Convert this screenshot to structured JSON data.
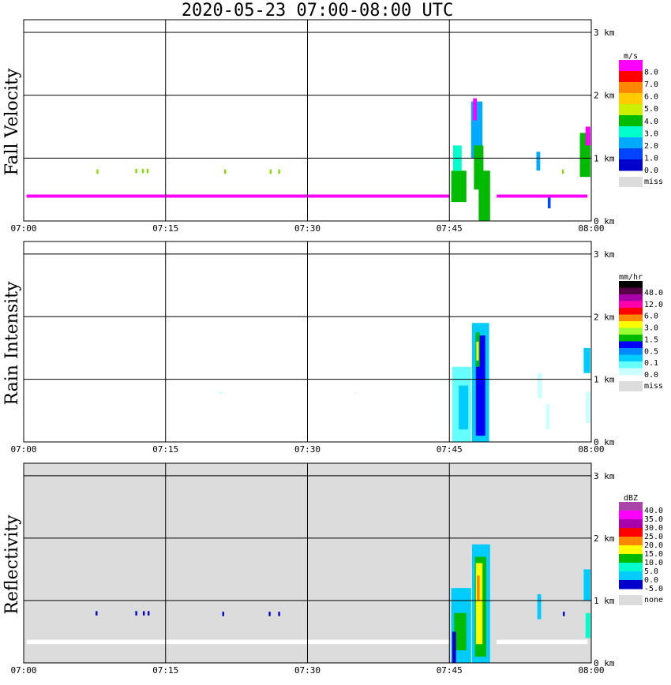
{
  "title": "2020-05-23   07:00-08:00 UTC",
  "x_ticks": [
    "07:00",
    "07:15",
    "07:30",
    "07:45",
    "08:00"
  ],
  "km_ticks": [
    "0 km",
    "1 km",
    "2 km",
    "3 km"
  ],
  "colors": {
    "missing": "#dcdcdc",
    "grid": "#000000"
  },
  "chart_data": [
    {
      "type": "heatmap",
      "ylabel": "Fall Velocity",
      "xlim": [
        "07:00",
        "08:00"
      ],
      "ylim_km": [
        0,
        3.2
      ],
      "legend": {
        "unit": "m/s",
        "labels": [
          "8.0",
          "7.0",
          "6.0",
          "5.0",
          "4.0",
          "3.0",
          "2.0",
          "1.0",
          "0.0"
        ],
        "colors": [
          "#ff00ff",
          "#ff0000",
          "#ff8800",
          "#ffcc00",
          "#ccee00",
          "#00bb00",
          "#00ffcc",
          "#00aaff",
          "#0044ff",
          "#0000cc"
        ],
        "missing_label": "miss"
      },
      "cells": [
        {
          "t0": 47.3,
          "t1": 48.5,
          "z0": 1.0,
          "z1": 1.9,
          "c": "#00aaff"
        },
        {
          "t0": 47.6,
          "t1": 48.6,
          "z0": 0.5,
          "z1": 1.2,
          "c": "#00bb00"
        },
        {
          "t0": 48.1,
          "t1": 49.3,
          "z0": 0.0,
          "z1": 0.8,
          "c": "#00bb00"
        },
        {
          "t0": 45.2,
          "t1": 46.8,
          "z0": 0.3,
          "z1": 0.8,
          "c": "#00bb00"
        },
        {
          "t0": 45.4,
          "t1": 46.3,
          "z0": 0.8,
          "z1": 1.2,
          "c": "#00ffcc"
        },
        {
          "t0": 47.5,
          "t1": 47.9,
          "z0": 1.6,
          "z1": 1.95,
          "c": "#ff00ff"
        },
        {
          "t0": 58.8,
          "t1": 59.9,
          "z0": 0.7,
          "z1": 1.4,
          "c": "#00bb00"
        },
        {
          "t0": 59.4,
          "t1": 59.9,
          "z0": 1.2,
          "z1": 1.5,
          "c": "#ff00ff"
        },
        {
          "t0": 54.2,
          "t1": 54.6,
          "z0": 0.8,
          "z1": 1.1,
          "c": "#00aaff"
        },
        {
          "t0": 55.4,
          "t1": 55.7,
          "z0": 0.2,
          "z1": 0.4,
          "c": "#0044ff"
        },
        {
          "t0": 7.7,
          "t1": 7.9,
          "z0": 0.75,
          "z1": 0.82,
          "c": "#88dd00"
        },
        {
          "t0": 11.8,
          "t1": 12.0,
          "z0": 0.76,
          "z1": 0.83,
          "c": "#88dd00"
        },
        {
          "t0": 12.5,
          "t1": 12.7,
          "z0": 0.76,
          "z1": 0.83,
          "c": "#88dd00"
        },
        {
          "t0": 13.0,
          "t1": 13.2,
          "z0": 0.76,
          "z1": 0.83,
          "c": "#88dd00"
        },
        {
          "t0": 21.2,
          "t1": 21.4,
          "z0": 0.75,
          "z1": 0.82,
          "c": "#88dd00"
        },
        {
          "t0": 26.0,
          "t1": 26.2,
          "z0": 0.75,
          "z1": 0.82,
          "c": "#88dd00"
        },
        {
          "t0": 26.9,
          "t1": 27.1,
          "z0": 0.75,
          "z1": 0.82,
          "c": "#88dd00"
        },
        {
          "t0": 56.9,
          "t1": 57.1,
          "z0": 0.75,
          "z1": 0.82,
          "c": "#88dd00"
        },
        {
          "t0": 0.3,
          "t1": 45.0,
          "z0": 0.37,
          "z1": 0.42,
          "c": "#ff00ff"
        },
        {
          "t0": 50.0,
          "t1": 59.6,
          "z0": 0.37,
          "z1": 0.42,
          "c": "#ff00ff"
        }
      ]
    },
    {
      "type": "heatmap",
      "ylabel": "Rain Intensity",
      "xlim": [
        "07:00",
        "08:00"
      ],
      "ylim_km": [
        0,
        3.2
      ],
      "legend": {
        "unit": "mm/hr",
        "labels": [
          "48.0",
          "12.0",
          "6.0",
          "3.0",
          "1.5",
          "0.5",
          "0.1",
          "0.0"
        ],
        "colors": [
          "#000000",
          "#550044",
          "#aa00aa",
          "#ff00aa",
          "#ff0000",
          "#ff8800",
          "#ffff00",
          "#99ff33",
          "#00bb00",
          "#0000ff",
          "#0088ff",
          "#00ccff",
          "#66ffff",
          "#ccffff"
        ],
        "missing_label": "miss"
      },
      "cells": [
        {
          "t0": 45.3,
          "t1": 47.3,
          "z0": 0.0,
          "z1": 1.2,
          "c": "#66ffff"
        },
        {
          "t0": 46.0,
          "t1": 47.0,
          "z0": 0.2,
          "z1": 0.9,
          "c": "#00ccff"
        },
        {
          "t0": 47.4,
          "t1": 49.2,
          "z0": 0.0,
          "z1": 1.9,
          "c": "#00ccff"
        },
        {
          "t0": 47.8,
          "t1": 48.8,
          "z0": 0.1,
          "z1": 1.7,
          "c": "#0000ff"
        },
        {
          "t0": 47.8,
          "t1": 48.2,
          "z0": 1.2,
          "z1": 1.75,
          "c": "#00bb00"
        },
        {
          "t0": 47.85,
          "t1": 48.1,
          "z0": 1.3,
          "z1": 1.6,
          "c": "#ffff00"
        },
        {
          "t0": 54.3,
          "t1": 54.8,
          "z0": 0.7,
          "z1": 1.1,
          "c": "#ccffff"
        },
        {
          "t0": 55.2,
          "t1": 55.6,
          "z0": 0.2,
          "z1": 0.6,
          "c": "#ccffff"
        },
        {
          "t0": 59.2,
          "t1": 59.9,
          "z0": 1.1,
          "z1": 1.5,
          "c": "#00ccff"
        },
        {
          "t0": 59.4,
          "t1": 59.9,
          "z0": 0.3,
          "z1": 0.8,
          "c": "#ccffff"
        },
        {
          "t0": 20.6,
          "t1": 21.0,
          "z0": 0.77,
          "z1": 0.8,
          "c": "#ccffff"
        },
        {
          "t0": 35.0,
          "t1": 35.2,
          "z0": 0.77,
          "z1": 0.8,
          "c": "#ccffff"
        }
      ]
    },
    {
      "type": "heatmap",
      "ylabel": "Reflectivity",
      "xlim": [
        "07:00",
        "08:00"
      ],
      "ylim_km": [
        0,
        3.2
      ],
      "legend": {
        "unit": "dBZ",
        "labels": [
          "40.0",
          "35.0",
          "30.0",
          "25.0",
          "20.0",
          "15.0",
          "10.0",
          "5.0",
          "0.0",
          "-5.0"
        ],
        "colors": [
          "#aa44aa",
          "#ff00ff",
          "#aa00aa",
          "#ff0000",
          "#ff8800",
          "#ffff00",
          "#00bb00",
          "#00ffcc",
          "#00ccff",
          "#0000cc"
        ],
        "missing_label": "none"
      },
      "cells": [
        {
          "t0": 45.2,
          "t1": 47.3,
          "z0": 0.0,
          "z1": 1.2,
          "c": "#00ccff"
        },
        {
          "t0": 45.5,
          "t1": 46.8,
          "z0": 0.2,
          "z1": 0.8,
          "c": "#00bb00"
        },
        {
          "t0": 47.4,
          "t1": 49.3,
          "z0": 0.0,
          "z1": 1.9,
          "c": "#00ccff"
        },
        {
          "t0": 47.7,
          "t1": 48.9,
          "z0": 0.1,
          "z1": 1.7,
          "c": "#00bb00"
        },
        {
          "t0": 47.8,
          "t1": 48.5,
          "z0": 0.3,
          "z1": 1.6,
          "c": "#ffff00"
        },
        {
          "t0": 47.9,
          "t1": 48.2,
          "z0": 1.0,
          "z1": 1.4,
          "c": "#ff8800"
        },
        {
          "t0": 45.3,
          "t1": 45.7,
          "z0": 0.0,
          "z1": 0.5,
          "c": "#0000cc"
        },
        {
          "t0": 54.3,
          "t1": 54.7,
          "z0": 0.7,
          "z1": 1.1,
          "c": "#00ccff"
        },
        {
          "t0": 59.2,
          "t1": 59.9,
          "z0": 1.0,
          "z1": 1.5,
          "c": "#00ccff"
        },
        {
          "t0": 59.4,
          "t1": 59.9,
          "z0": 0.4,
          "z1": 0.8,
          "c": "#00ffcc"
        },
        {
          "t0": 7.6,
          "t1": 7.8,
          "z0": 0.76,
          "z1": 0.83,
          "c": "#0000cc"
        },
        {
          "t0": 11.8,
          "t1": 12.0,
          "z0": 0.76,
          "z1": 0.83,
          "c": "#0000cc"
        },
        {
          "t0": 12.6,
          "t1": 12.8,
          "z0": 0.76,
          "z1": 0.83,
          "c": "#0000cc"
        },
        {
          "t0": 13.1,
          "t1": 13.3,
          "z0": 0.76,
          "z1": 0.83,
          "c": "#0000cc"
        },
        {
          "t0": 21.0,
          "t1": 21.2,
          "z0": 0.75,
          "z1": 0.82,
          "c": "#0000cc"
        },
        {
          "t0": 25.9,
          "t1": 26.1,
          "z0": 0.75,
          "z1": 0.82,
          "c": "#0000cc"
        },
        {
          "t0": 26.9,
          "t1": 27.1,
          "z0": 0.75,
          "z1": 0.82,
          "c": "#0000cc"
        },
        {
          "t0": 57.0,
          "t1": 57.2,
          "z0": 0.75,
          "z1": 0.82,
          "c": "#0000cc"
        },
        {
          "t0": 0.3,
          "t1": 45.0,
          "z0": 0.3,
          "z1": 0.37,
          "c": "#ffffff"
        },
        {
          "t0": 50.0,
          "t1": 59.6,
          "z0": 0.3,
          "z1": 0.37,
          "c": "#ffffff"
        }
      ]
    }
  ]
}
